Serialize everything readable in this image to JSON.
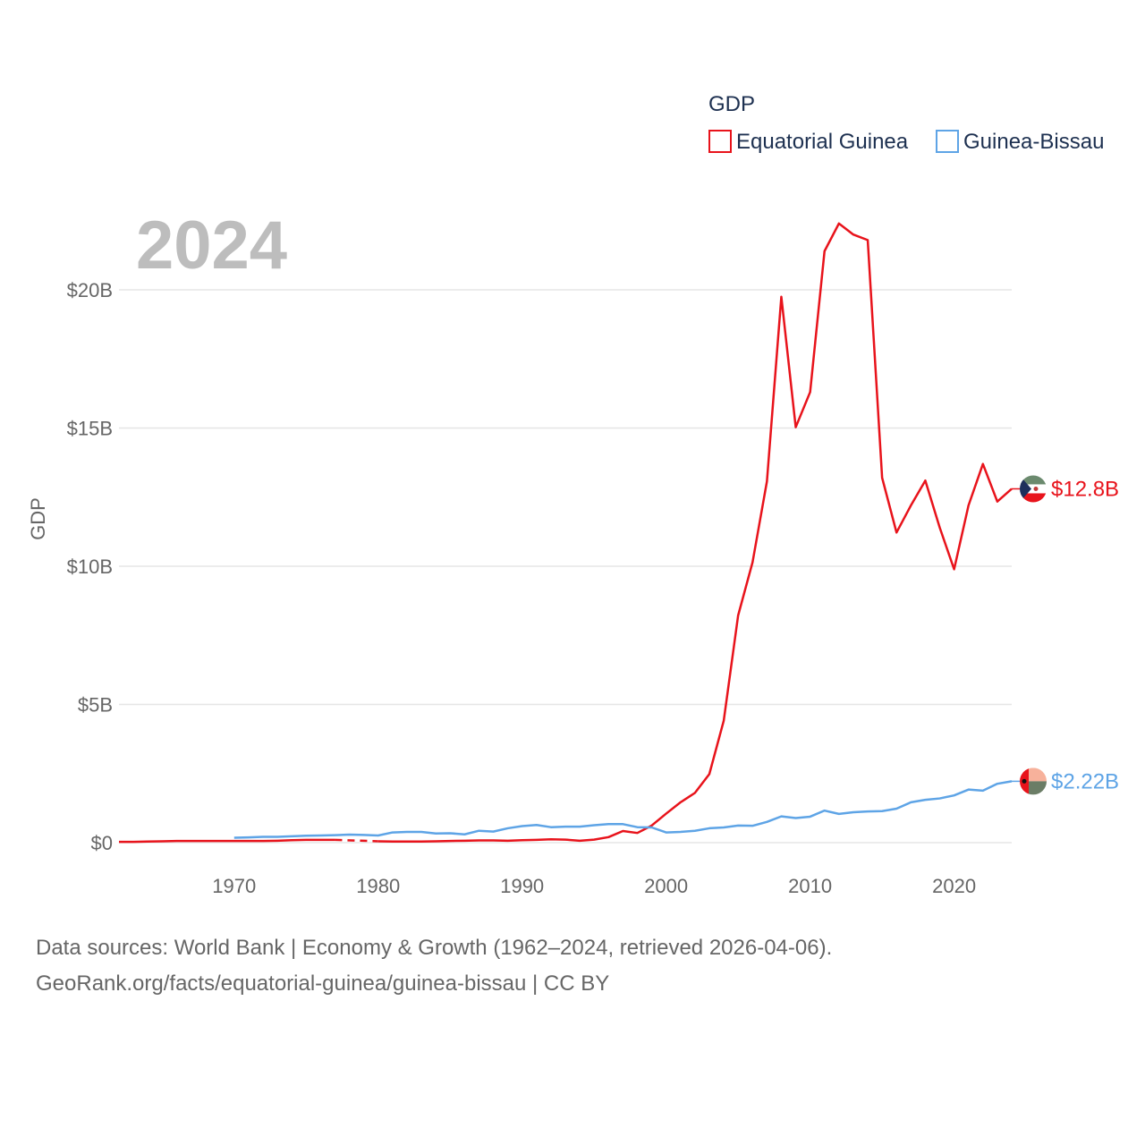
{
  "chart_data": {
    "type": "line",
    "title": "",
    "watermark_year": "2024",
    "xlabel": "",
    "ylabel": "GDP",
    "xlim": [
      1962,
      2024
    ],
    "ylim": [
      0,
      20
    ],
    "x_ticks": [
      1970,
      1980,
      1990,
      2000,
      2010,
      2020
    ],
    "x_tick_labels": [
      "1970",
      "1980",
      "1990",
      "2000",
      "2010",
      "2020"
    ],
    "y_ticks": [
      0,
      5,
      10,
      15,
      20
    ],
    "y_tick_labels": [
      "$0",
      "$5B",
      "$10B",
      "$15B",
      "$20B"
    ],
    "unit": "billion USD",
    "grid": true,
    "legend": {
      "title": "GDP",
      "position": "top-right",
      "entries": [
        "Equatorial Guinea",
        "Guinea-Bissau"
      ]
    },
    "series": [
      {
        "name": "Equatorial Guinea",
        "color": "#e8131b",
        "end_label": "$12.8B",
        "flag": "equatorial-guinea-flag",
        "gap": [
          1977,
          1980
        ],
        "x": [
          1962,
          1963,
          1964,
          1965,
          1966,
          1967,
          1968,
          1969,
          1970,
          1971,
          1972,
          1973,
          1974,
          1975,
          1976,
          1977,
          1980,
          1981,
          1982,
          1983,
          1984,
          1985,
          1986,
          1987,
          1988,
          1989,
          1990,
          1991,
          1992,
          1993,
          1994,
          1995,
          1996,
          1997,
          1998,
          1999,
          2000,
          2001,
          2002,
          2003,
          2004,
          2005,
          2006,
          2007,
          2008,
          2009,
          2010,
          2011,
          2012,
          2013,
          2014,
          2015,
          2016,
          2017,
          2018,
          2019,
          2020,
          2021,
          2022,
          2023,
          2024
        ],
        "values": [
          0.03,
          0.03,
          0.04,
          0.05,
          0.06,
          0.06,
          0.06,
          0.06,
          0.06,
          0.06,
          0.06,
          0.07,
          0.09,
          0.1,
          0.1,
          0.1,
          0.05,
          0.04,
          0.04,
          0.04,
          0.05,
          0.06,
          0.07,
          0.08,
          0.08,
          0.07,
          0.09,
          0.1,
          0.12,
          0.11,
          0.07,
          0.11,
          0.2,
          0.42,
          0.35,
          0.62,
          1.05,
          1.46,
          1.8,
          2.48,
          4.41,
          8.22,
          10.14,
          13.07,
          19.75,
          15.03,
          16.3,
          21.4,
          22.4,
          22.0,
          21.8,
          13.2,
          11.22,
          12.2,
          13.1,
          11.4,
          9.89,
          12.2,
          13.7,
          12.34,
          12.8
        ]
      },
      {
        "name": "Guinea-Bissau",
        "color": "#5ea4e6",
        "end_label": "$2.22B",
        "flag": "guinea-bissau-flag",
        "x": [
          1970,
          1971,
          1972,
          1973,
          1974,
          1975,
          1976,
          1977,
          1978,
          1979,
          1980,
          1981,
          1982,
          1983,
          1984,
          1985,
          1986,
          1987,
          1988,
          1989,
          1990,
          1991,
          1992,
          1993,
          1994,
          1995,
          1996,
          1997,
          1998,
          1999,
          2000,
          2001,
          2002,
          2003,
          2004,
          2005,
          2006,
          2007,
          2008,
          2009,
          2010,
          2011,
          2012,
          2013,
          2014,
          2015,
          2016,
          2017,
          2018,
          2019,
          2020,
          2021,
          2022,
          2023,
          2024
        ],
        "values": [
          0.18,
          0.19,
          0.21,
          0.21,
          0.23,
          0.25,
          0.26,
          0.27,
          0.29,
          0.28,
          0.26,
          0.37,
          0.39,
          0.39,
          0.33,
          0.34,
          0.3,
          0.43,
          0.4,
          0.52,
          0.6,
          0.64,
          0.56,
          0.58,
          0.58,
          0.63,
          0.67,
          0.67,
          0.56,
          0.55,
          0.37,
          0.39,
          0.43,
          0.52,
          0.55,
          0.62,
          0.61,
          0.75,
          0.95,
          0.89,
          0.94,
          1.16,
          1.04,
          1.1,
          1.13,
          1.14,
          1.23,
          1.46,
          1.55,
          1.6,
          1.71,
          1.92,
          1.88,
          2.13,
          2.22
        ]
      }
    ]
  },
  "footer": {
    "line1": "Data sources: World Bank | Economy & Growth (1962–2024, retrieved 2026-04-06).",
    "line2": "GeoRank.org/facts/equatorial-guinea/guinea-bissau | CC BY"
  }
}
